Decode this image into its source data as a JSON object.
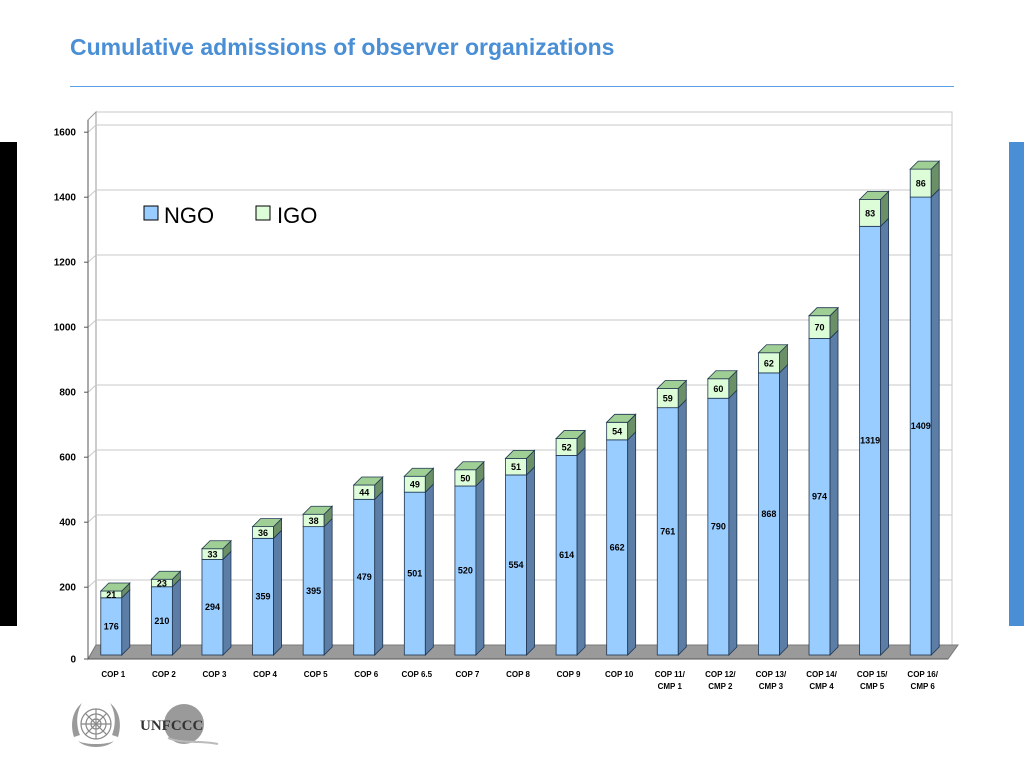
{
  "slide": {
    "title": "Cumulative admissions of observer organizations"
  },
  "logos": {
    "unfccc_text": "UNFCCC"
  },
  "colors": {
    "title": "#4a8fd6",
    "ngo_fill": "#99ccff",
    "ngo_side": "#5c7ea6",
    "ngo_top": "#bcdcff",
    "igo_fill": "#ddfcd8",
    "igo_side": "#6b8f66",
    "igo_top": "#9fcf94",
    "left_bar": "#000000",
    "right_bar": "#4a8fd6"
  },
  "chart_data": {
    "type": "bar",
    "stacked": true,
    "style": "3d-column",
    "categories": [
      "COP 1",
      "COP 2",
      "COP 3",
      "COP 4",
      "COP 5",
      "COP 6",
      "COP 6.5",
      "COP 7",
      "COP 8",
      "COP 9",
      "COP 10",
      "COP 11/ CMP 1",
      "COP 12/ CMP 2",
      "COP 13/ CMP 3",
      "COP 14/ CMP 4",
      "COP 15/ CMP 5",
      "COP 16/ CMP 6"
    ],
    "series": [
      {
        "name": "NGO",
        "values": [
          176,
          210,
          294,
          359,
          395,
          479,
          501,
          520,
          554,
          614,
          662,
          761,
          790,
          868,
          974,
          1319,
          1409
        ]
      },
      {
        "name": "IGO",
        "values": [
          21,
          23,
          33,
          36,
          38,
          44,
          49,
          50,
          51,
          52,
          54,
          59,
          60,
          62,
          70,
          83,
          86
        ]
      }
    ],
    "yticks": [
      0,
      200,
      400,
      600,
      800,
      1000,
      1200,
      1400,
      1600
    ],
    "ylim": [
      0,
      1600
    ],
    "grid": true,
    "legend_position": "top-left"
  }
}
